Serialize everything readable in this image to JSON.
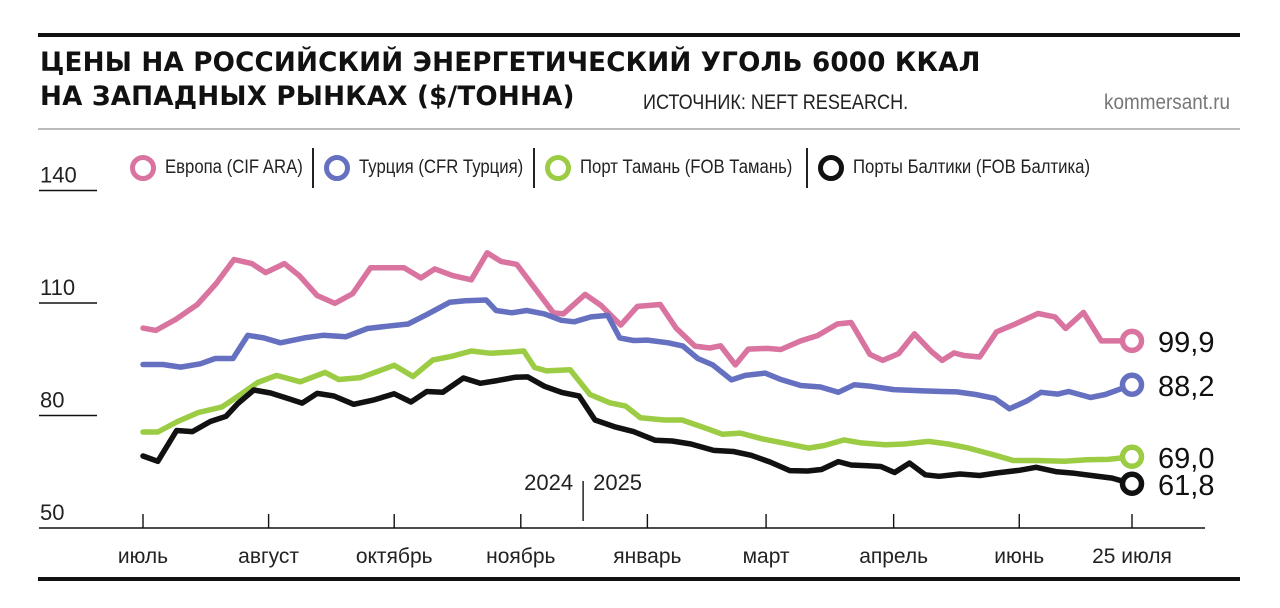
{
  "header": {
    "title_line1": "ЦЕНЫ НА РОССИЙСКИЙ ЭНЕРГЕТИЧЕСКИЙ УГОЛЬ 6000 ККАЛ",
    "title_line2": "НА ЗАПАДНЫХ РЫНКАХ ($/ТОННА)",
    "source": "ИСТОЧНИК: NEFT RESEARCH.",
    "site": "kommersant.ru"
  },
  "legend": [
    {
      "label": "Европа (CIF ARA)",
      "color": "#d9739f"
    },
    {
      "label": "Турция (CFR Турция)",
      "color": "#6670c0"
    },
    {
      "label": "Порт Тамань (FOB Тамань)",
      "color": "#9ccc44"
    },
    {
      "label": "Порты Балтики (FOB Балтика)",
      "color": "#111111"
    }
  ],
  "chart_data": {
    "type": "line",
    "title": "ЦЕНЫ НА РОССИЙСКИЙ ЭНЕРГЕТИЧЕСКИЙ УГОЛЬ 6000 ККАЛ НА ЗАПАДНЫХ РЫНКАХ ($/ТОННА)",
    "xlabel": "",
    "ylabel": "$/тонна",
    "ylim": [
      50,
      140
    ],
    "yticks": [
      "50",
      "80",
      "110",
      "140"
    ],
    "ytick_values": [
      50,
      80,
      110,
      140
    ],
    "x_range": [
      0,
      100
    ],
    "xticks": [
      {
        "label": "июль",
        "x": 0
      },
      {
        "label": "август",
        "x": 12.7
      },
      {
        "label": "октябрь",
        "x": 25.4
      },
      {
        "label": "ноябрь",
        "x": 38.2
      },
      {
        "label": "январь",
        "x": 51.0
      },
      {
        "label": "март",
        "x": 63.0
      },
      {
        "label": "апрель",
        "x": 75.9
      },
      {
        "label": "июнь",
        "x": 88.6
      },
      {
        "label": "25 июля",
        "x": 100
      }
    ],
    "year_divider": {
      "x": 44.5,
      "left_label": "2024",
      "right_label": "2025"
    },
    "legend_position": "top",
    "grid": false,
    "series": [
      {
        "name": "Европа (CIF ARA)",
        "color": "#d9739f",
        "end_label": "99,9",
        "points": [
          [
            0,
            103.3
          ],
          [
            1.3,
            102.7
          ],
          [
            3.3,
            105.6
          ],
          [
            5.5,
            109.6
          ],
          [
            7.4,
            115.2
          ],
          [
            9.2,
            121.6
          ],
          [
            11.0,
            120.5
          ],
          [
            12.4,
            118.1
          ],
          [
            14.3,
            120.5
          ],
          [
            15.8,
            117.3
          ],
          [
            17.6,
            112.0
          ],
          [
            19.4,
            109.9
          ],
          [
            21.2,
            112.5
          ],
          [
            23.0,
            119.4
          ],
          [
            24.6,
            119.4
          ],
          [
            26.4,
            119.4
          ],
          [
            28.1,
            116.7
          ],
          [
            29.5,
            119.1
          ],
          [
            31.3,
            117.3
          ],
          [
            33.2,
            116.2
          ],
          [
            34.8,
            123.4
          ],
          [
            36.2,
            121.1
          ],
          [
            37.8,
            120.3
          ],
          [
            39.2,
            115.4
          ],
          [
            41.5,
            107.4
          ],
          [
            42.5,
            107.1
          ],
          [
            44.7,
            112.3
          ],
          [
            46.3,
            109.4
          ],
          [
            48.3,
            104.1
          ],
          [
            50.0,
            109.1
          ],
          [
            52.3,
            109.6
          ],
          [
            53.9,
            103.3
          ],
          [
            55.8,
            98.5
          ],
          [
            57.3,
            98.0
          ],
          [
            58.4,
            98.6
          ],
          [
            59.9,
            93.5
          ],
          [
            61.2,
            97.7
          ],
          [
            63.1,
            97.9
          ],
          [
            64.5,
            97.6
          ],
          [
            66.5,
            99.9
          ],
          [
            68.2,
            101.3
          ],
          [
            70.2,
            104.4
          ],
          [
            71.6,
            104.8
          ],
          [
            73.5,
            96.3
          ],
          [
            74.8,
            94.7
          ],
          [
            76.4,
            96.5
          ],
          [
            78.0,
            101.8
          ],
          [
            79.7,
            97.1
          ],
          [
            80.8,
            94.7
          ],
          [
            82.0,
            96.7
          ],
          [
            83.0,
            96.0
          ],
          [
            84.6,
            95.6
          ],
          [
            86.3,
            102.3
          ],
          [
            88.2,
            104.4
          ],
          [
            90.5,
            107.2
          ],
          [
            92.2,
            106.3
          ],
          [
            93.3,
            103.2
          ],
          [
            95.1,
            107.5
          ],
          [
            96.9,
            99.9
          ],
          [
            100,
            99.9
          ]
        ]
      },
      {
        "name": "Турция (CFR Турция)",
        "color": "#6670c0",
        "end_label": "88,2",
        "points": [
          [
            0,
            93.6
          ],
          [
            2.0,
            93.6
          ],
          [
            3.8,
            92.9
          ],
          [
            5.8,
            93.8
          ],
          [
            7.3,
            95.2
          ],
          [
            9.1,
            95.2
          ],
          [
            10.6,
            101.4
          ],
          [
            12.2,
            100.7
          ],
          [
            13.9,
            99.4
          ],
          [
            16.3,
            100.7
          ],
          [
            18.2,
            101.4
          ],
          [
            20.5,
            101.0
          ],
          [
            22.7,
            103.2
          ],
          [
            24.6,
            103.8
          ],
          [
            26.8,
            104.4
          ],
          [
            28.7,
            106.9
          ],
          [
            31.0,
            110.2
          ],
          [
            32.6,
            110.6
          ],
          [
            34.7,
            110.8
          ],
          [
            35.7,
            108.0
          ],
          [
            37.3,
            107.4
          ],
          [
            38.8,
            108.0
          ],
          [
            40.6,
            107.1
          ],
          [
            42.3,
            105.4
          ],
          [
            43.6,
            105.0
          ],
          [
            45.3,
            106.3
          ],
          [
            47.0,
            106.7
          ],
          [
            48.2,
            100.7
          ],
          [
            49.6,
            100.0
          ],
          [
            51.0,
            100.1
          ],
          [
            53.1,
            99.4
          ],
          [
            54.6,
            98.5
          ],
          [
            56.1,
            95.2
          ],
          [
            57.6,
            93.5
          ],
          [
            59.5,
            89.5
          ],
          [
            60.9,
            90.7
          ],
          [
            62.9,
            91.3
          ],
          [
            64.5,
            89.6
          ],
          [
            66.5,
            88.0
          ],
          [
            68.5,
            87.6
          ],
          [
            70.3,
            86.2
          ],
          [
            71.9,
            88.2
          ],
          [
            73.6,
            87.8
          ],
          [
            75.9,
            86.9
          ],
          [
            78.6,
            86.6
          ],
          [
            80.8,
            86.4
          ],
          [
            82.3,
            86.3
          ],
          [
            84.2,
            85.6
          ],
          [
            86.1,
            84.6
          ],
          [
            87.6,
            81.8
          ],
          [
            89.3,
            83.8
          ],
          [
            90.8,
            86.2
          ],
          [
            92.5,
            85.7
          ],
          [
            93.6,
            86.4
          ],
          [
            95.8,
            84.8
          ],
          [
            97.3,
            85.6
          ],
          [
            100,
            88.2
          ]
        ]
      },
      {
        "name": "Порт Тамань (FOB Тамань)",
        "color": "#9ccc44",
        "end_label": "69,0",
        "points": [
          [
            0,
            75.6
          ],
          [
            1.5,
            75.6
          ],
          [
            3.5,
            78.4
          ],
          [
            5.6,
            80.8
          ],
          [
            8.0,
            82.3
          ],
          [
            9.7,
            85.3
          ],
          [
            11.6,
            88.8
          ],
          [
            13.5,
            90.7
          ],
          [
            15.9,
            89.0
          ],
          [
            18.4,
            91.5
          ],
          [
            19.8,
            89.6
          ],
          [
            22.0,
            90.1
          ],
          [
            24.1,
            92.1
          ],
          [
            25.4,
            93.4
          ],
          [
            27.3,
            90.4
          ],
          [
            29.3,
            94.8
          ],
          [
            31.2,
            95.8
          ],
          [
            33.2,
            97.2
          ],
          [
            35.2,
            96.6
          ],
          [
            37.6,
            97.0
          ],
          [
            38.5,
            97.2
          ],
          [
            39.6,
            92.8
          ],
          [
            40.8,
            91.9
          ],
          [
            43.2,
            92.2
          ],
          [
            45.2,
            85.6
          ],
          [
            47.2,
            83.4
          ],
          [
            48.8,
            82.5
          ],
          [
            50.3,
            79.4
          ],
          [
            52.7,
            78.8
          ],
          [
            54.5,
            78.8
          ],
          [
            56.6,
            76.9
          ],
          [
            58.6,
            75.0
          ],
          [
            60.4,
            75.3
          ],
          [
            62.6,
            73.8
          ],
          [
            64.9,
            72.6
          ],
          [
            67.3,
            71.3
          ],
          [
            68.9,
            72.0
          ],
          [
            70.9,
            73.5
          ],
          [
            72.6,
            72.7
          ],
          [
            75.0,
            72.2
          ],
          [
            77.0,
            72.4
          ],
          [
            79.4,
            73.1
          ],
          [
            81.4,
            72.4
          ],
          [
            83.5,
            71.3
          ],
          [
            86.2,
            69.4
          ],
          [
            88.0,
            68.0
          ],
          [
            90.3,
            68.0
          ],
          [
            93.2,
            67.8
          ],
          [
            95.4,
            68.2
          ],
          [
            97.6,
            68.3
          ],
          [
            100,
            69.0
          ]
        ]
      },
      {
        "name": "Порты Балтики (FOB Балтика)",
        "color": "#111111",
        "end_label": "61,8",
        "points": [
          [
            0,
            69.2
          ],
          [
            1.5,
            67.8
          ],
          [
            3.4,
            76.0
          ],
          [
            5.0,
            75.7
          ],
          [
            6.8,
            78.4
          ],
          [
            8.4,
            79.8
          ],
          [
            9.6,
            83.2
          ],
          [
            11.2,
            86.8
          ],
          [
            12.9,
            86.0
          ],
          [
            14.7,
            84.5
          ],
          [
            16.1,
            83.3
          ],
          [
            17.6,
            85.9
          ],
          [
            19.3,
            85.2
          ],
          [
            21.3,
            83.0
          ],
          [
            23.4,
            84.2
          ],
          [
            25.4,
            85.8
          ],
          [
            27.1,
            83.6
          ],
          [
            28.7,
            86.4
          ],
          [
            30.3,
            86.2
          ],
          [
            32.4,
            90.0
          ],
          [
            34.1,
            88.6
          ],
          [
            35.8,
            89.3
          ],
          [
            37.6,
            90.2
          ],
          [
            38.9,
            90.3
          ],
          [
            40.6,
            87.8
          ],
          [
            42.4,
            86.1
          ],
          [
            44.1,
            85.2
          ],
          [
            45.7,
            78.8
          ],
          [
            47.8,
            76.9
          ],
          [
            49.6,
            75.7
          ],
          [
            51.8,
            73.4
          ],
          [
            53.5,
            73.2
          ],
          [
            55.4,
            72.4
          ],
          [
            57.7,
            70.7
          ],
          [
            59.7,
            70.4
          ],
          [
            61.5,
            69.4
          ],
          [
            63.4,
            67.6
          ],
          [
            65.4,
            65.3
          ],
          [
            67.2,
            65.2
          ],
          [
            68.6,
            65.6
          ],
          [
            70.3,
            67.7
          ],
          [
            71.6,
            66.8
          ],
          [
            73.3,
            66.6
          ],
          [
            74.6,
            66.4
          ],
          [
            76.0,
            64.8
          ],
          [
            77.5,
            67.3
          ],
          [
            79.1,
            64.2
          ],
          [
            80.5,
            63.8
          ],
          [
            82.6,
            64.4
          ],
          [
            84.6,
            64.0
          ],
          [
            86.4,
            64.7
          ],
          [
            88.6,
            65.4
          ],
          [
            90.3,
            66.2
          ],
          [
            92.4,
            65.0
          ],
          [
            94.2,
            64.6
          ],
          [
            96.2,
            63.9
          ],
          [
            98.0,
            63.3
          ],
          [
            100,
            61.8
          ]
        ]
      }
    ]
  }
}
